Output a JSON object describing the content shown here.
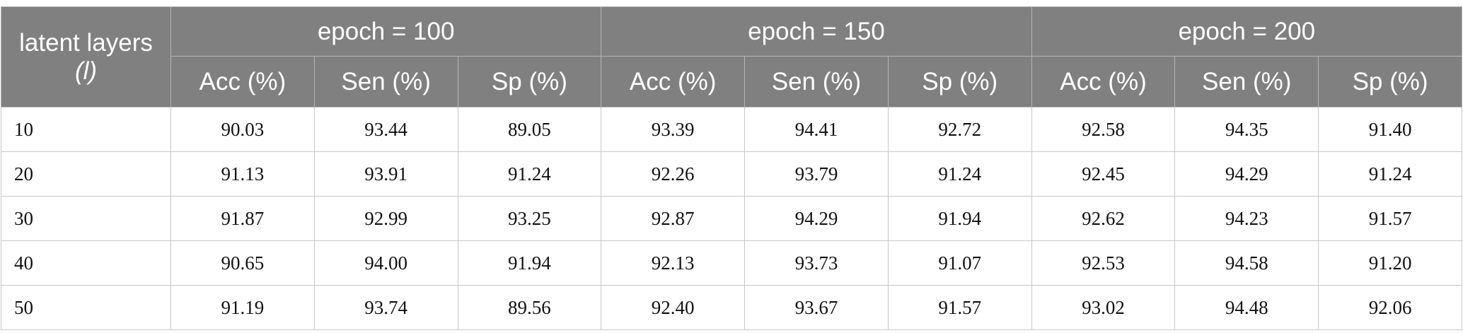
{
  "table": {
    "corner": "latent layers",
    "corner_symbol": "(l)",
    "groups": [
      "epoch = 100",
      "epoch = 150",
      "epoch = 200"
    ],
    "subheaders": [
      "Acc (%)",
      "Sen (%)",
      "Sp (%)",
      "Acc (%)",
      "Sen (%)",
      "Sp (%)",
      "Acc (%)",
      "Sen (%)",
      "Sp (%)"
    ],
    "rows": [
      [
        "10",
        "90.03",
        "93.44",
        "89.05",
        "93.39",
        "94.41",
        "92.72",
        "92.58",
        "94.35",
        "91.40"
      ],
      [
        "20",
        "91.13",
        "93.91",
        "91.24",
        "92.26",
        "93.79",
        "91.24",
        "92.45",
        "94.29",
        "91.24"
      ],
      [
        "30",
        "91.87",
        "92.99",
        "93.25",
        "92.87",
        "94.29",
        "91.94",
        "92.62",
        "94.23",
        "91.57"
      ],
      [
        "40",
        "90.65",
        "94.00",
        "91.94",
        "92.13",
        "93.73",
        "91.07",
        "92.53",
        "94.58",
        "91.20"
      ],
      [
        "50",
        "91.19",
        "93.74",
        "89.56",
        "92.40",
        "93.67",
        "91.57",
        "93.02",
        "94.48",
        "92.06"
      ]
    ]
  }
}
